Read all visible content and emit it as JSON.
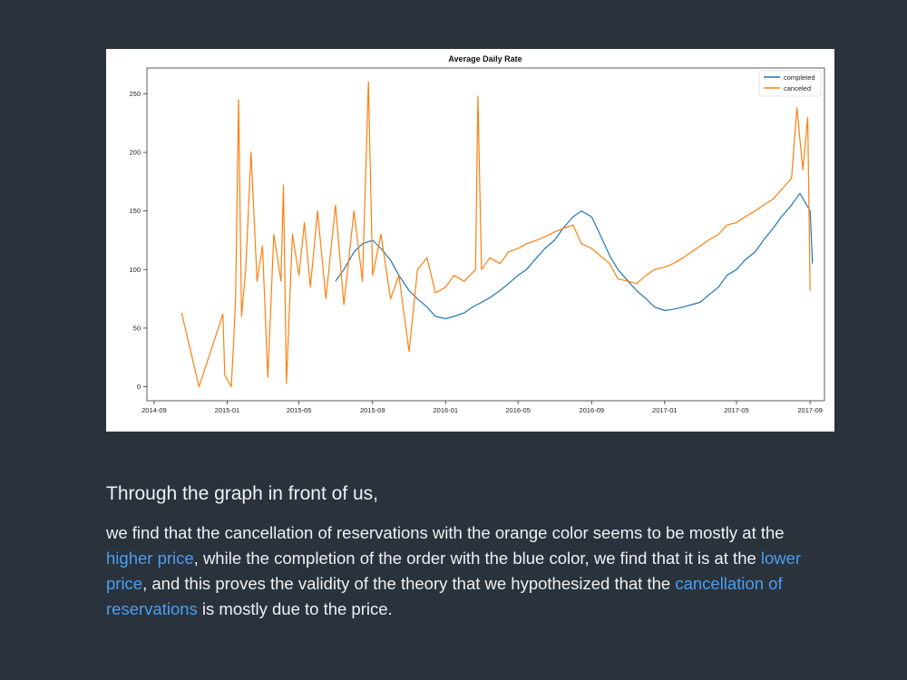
{
  "chart_data": {
    "type": "line",
    "title": "Average Daily Rate",
    "xlabel": "",
    "ylabel": "",
    "x_ticks": [
      "2014-09",
      "2015-01",
      "2015-05",
      "2015-09",
      "2016-01",
      "2016-05",
      "2016-09",
      "2017-01",
      "2017-05",
      "2017-09"
    ],
    "y_ticks": [
      0,
      50,
      100,
      150,
      200,
      250
    ],
    "xlim": [
      "2014-08-20",
      "2017-09-25"
    ],
    "ylim": [
      -12,
      272
    ],
    "legend_position": "top-right",
    "grid": false,
    "series": [
      {
        "name": "completed",
        "color": "#1f77b4",
        "points": [
          [
            "2015-07-01",
            90
          ],
          [
            "2015-07-15",
            100
          ],
          [
            "2015-08-01",
            115
          ],
          [
            "2015-08-15",
            122
          ],
          [
            "2015-09-01",
            125
          ],
          [
            "2015-09-15",
            118
          ],
          [
            "2015-10-01",
            108
          ],
          [
            "2015-10-15",
            95
          ],
          [
            "2015-11-01",
            82
          ],
          [
            "2015-11-15",
            75
          ],
          [
            "2015-12-01",
            68
          ],
          [
            "2015-12-15",
            60
          ],
          [
            "2016-01-01",
            58
          ],
          [
            "2016-01-15",
            60
          ],
          [
            "2016-02-01",
            63
          ],
          [
            "2016-02-15",
            68
          ],
          [
            "2016-03-01",
            72
          ],
          [
            "2016-03-15",
            76
          ],
          [
            "2016-04-01",
            82
          ],
          [
            "2016-04-15",
            88
          ],
          [
            "2016-05-01",
            95
          ],
          [
            "2016-05-15",
            100
          ],
          [
            "2016-06-01",
            110
          ],
          [
            "2016-06-15",
            118
          ],
          [
            "2016-07-01",
            125
          ],
          [
            "2016-07-15",
            135
          ],
          [
            "2016-08-01",
            145
          ],
          [
            "2016-08-15",
            150
          ],
          [
            "2016-09-01",
            145
          ],
          [
            "2016-09-15",
            130
          ],
          [
            "2016-10-01",
            112
          ],
          [
            "2016-10-15",
            100
          ],
          [
            "2016-11-01",
            90
          ],
          [
            "2016-11-15",
            82
          ],
          [
            "2016-12-01",
            75
          ],
          [
            "2016-12-15",
            68
          ],
          [
            "2017-01-01",
            65
          ],
          [
            "2017-01-15",
            66
          ],
          [
            "2017-02-01",
            68
          ],
          [
            "2017-02-15",
            70
          ],
          [
            "2017-03-01",
            72
          ],
          [
            "2017-03-15",
            78
          ],
          [
            "2017-04-01",
            85
          ],
          [
            "2017-04-15",
            95
          ],
          [
            "2017-05-01",
            100
          ],
          [
            "2017-05-15",
            108
          ],
          [
            "2017-06-01",
            115
          ],
          [
            "2017-06-15",
            125
          ],
          [
            "2017-07-01",
            135
          ],
          [
            "2017-07-15",
            145
          ],
          [
            "2017-08-01",
            155
          ],
          [
            "2017-08-15",
            165
          ],
          [
            "2017-09-01",
            150
          ],
          [
            "2017-09-05",
            105
          ]
        ]
      },
      {
        "name": "canceled",
        "color": "#ff7f0e",
        "points": [
          [
            "2014-10-17",
            63
          ],
          [
            "2014-11-15",
            0
          ],
          [
            "2014-12-25",
            62
          ],
          [
            "2014-12-28",
            10
          ],
          [
            "2015-01-08",
            0
          ],
          [
            "2015-01-12",
            40
          ],
          [
            "2015-01-15",
            75
          ],
          [
            "2015-01-20",
            245
          ],
          [
            "2015-01-25",
            60
          ],
          [
            "2015-02-01",
            100
          ],
          [
            "2015-02-10",
            200
          ],
          [
            "2015-02-20",
            90
          ],
          [
            "2015-03-01",
            120
          ],
          [
            "2015-03-10",
            8
          ],
          [
            "2015-03-20",
            130
          ],
          [
            "2015-04-01",
            90
          ],
          [
            "2015-04-05",
            172
          ],
          [
            "2015-04-10",
            3
          ],
          [
            "2015-04-20",
            130
          ],
          [
            "2015-05-01",
            95
          ],
          [
            "2015-05-10",
            140
          ],
          [
            "2015-05-20",
            85
          ],
          [
            "2015-06-01",
            150
          ],
          [
            "2015-06-15",
            75
          ],
          [
            "2015-07-01",
            155
          ],
          [
            "2015-07-15",
            70
          ],
          [
            "2015-08-01",
            150
          ],
          [
            "2015-08-15",
            90
          ],
          [
            "2015-08-25",
            260
          ],
          [
            "2015-09-01",
            95
          ],
          [
            "2015-09-15",
            130
          ],
          [
            "2015-10-01",
            75
          ],
          [
            "2015-10-15",
            95
          ],
          [
            "2015-11-01",
            30
          ],
          [
            "2015-11-15",
            100
          ],
          [
            "2015-12-01",
            110
          ],
          [
            "2015-12-15",
            80
          ],
          [
            "2016-01-01",
            85
          ],
          [
            "2016-01-15",
            95
          ],
          [
            "2016-02-01",
            90
          ],
          [
            "2016-02-20",
            100
          ],
          [
            "2016-02-24",
            248
          ],
          [
            "2016-03-01",
            100
          ],
          [
            "2016-03-15",
            110
          ],
          [
            "2016-04-01",
            105
          ],
          [
            "2016-04-15",
            115
          ],
          [
            "2016-05-01",
            118
          ],
          [
            "2016-05-15",
            122
          ],
          [
            "2016-06-01",
            125
          ],
          [
            "2016-06-15",
            128
          ],
          [
            "2016-07-01",
            132
          ],
          [
            "2016-07-15",
            135
          ],
          [
            "2016-08-01",
            138
          ],
          [
            "2016-08-15",
            122
          ],
          [
            "2016-09-01",
            118
          ],
          [
            "2016-09-15",
            112
          ],
          [
            "2016-10-01",
            105
          ],
          [
            "2016-10-15",
            92
          ],
          [
            "2016-11-01",
            90
          ],
          [
            "2016-11-15",
            88
          ],
          [
            "2016-12-01",
            95
          ],
          [
            "2016-12-15",
            100
          ],
          [
            "2017-01-01",
            102
          ],
          [
            "2017-01-15",
            105
          ],
          [
            "2017-02-01",
            110
          ],
          [
            "2017-02-15",
            115
          ],
          [
            "2017-03-01",
            120
          ],
          [
            "2017-03-15",
            125
          ],
          [
            "2017-04-01",
            130
          ],
          [
            "2017-04-15",
            138
          ],
          [
            "2017-05-01",
            140
          ],
          [
            "2017-05-15",
            145
          ],
          [
            "2017-06-01",
            150
          ],
          [
            "2017-06-15",
            155
          ],
          [
            "2017-07-01",
            160
          ],
          [
            "2017-07-15",
            168
          ],
          [
            "2017-08-01",
            178
          ],
          [
            "2017-08-10",
            238
          ],
          [
            "2017-08-20",
            185
          ],
          [
            "2017-08-28",
            230
          ],
          [
            "2017-09-01",
            82
          ]
        ]
      }
    ]
  },
  "text": {
    "heading": "Through the graph in front of us,",
    "para_1": " we find that the cancellation of reservations with the orange color seems to be mostly at the ",
    "hl_1": "higher price",
    "para_2": ", while the completion of the order with the blue color, we find that it is at the ",
    "hl_2": "lower price",
    "para_3": ", and this proves the validity of the theory that we hypothesized that the ",
    "hl_3": "cancellation of reservations",
    "para_4": " is mostly due to the price."
  }
}
